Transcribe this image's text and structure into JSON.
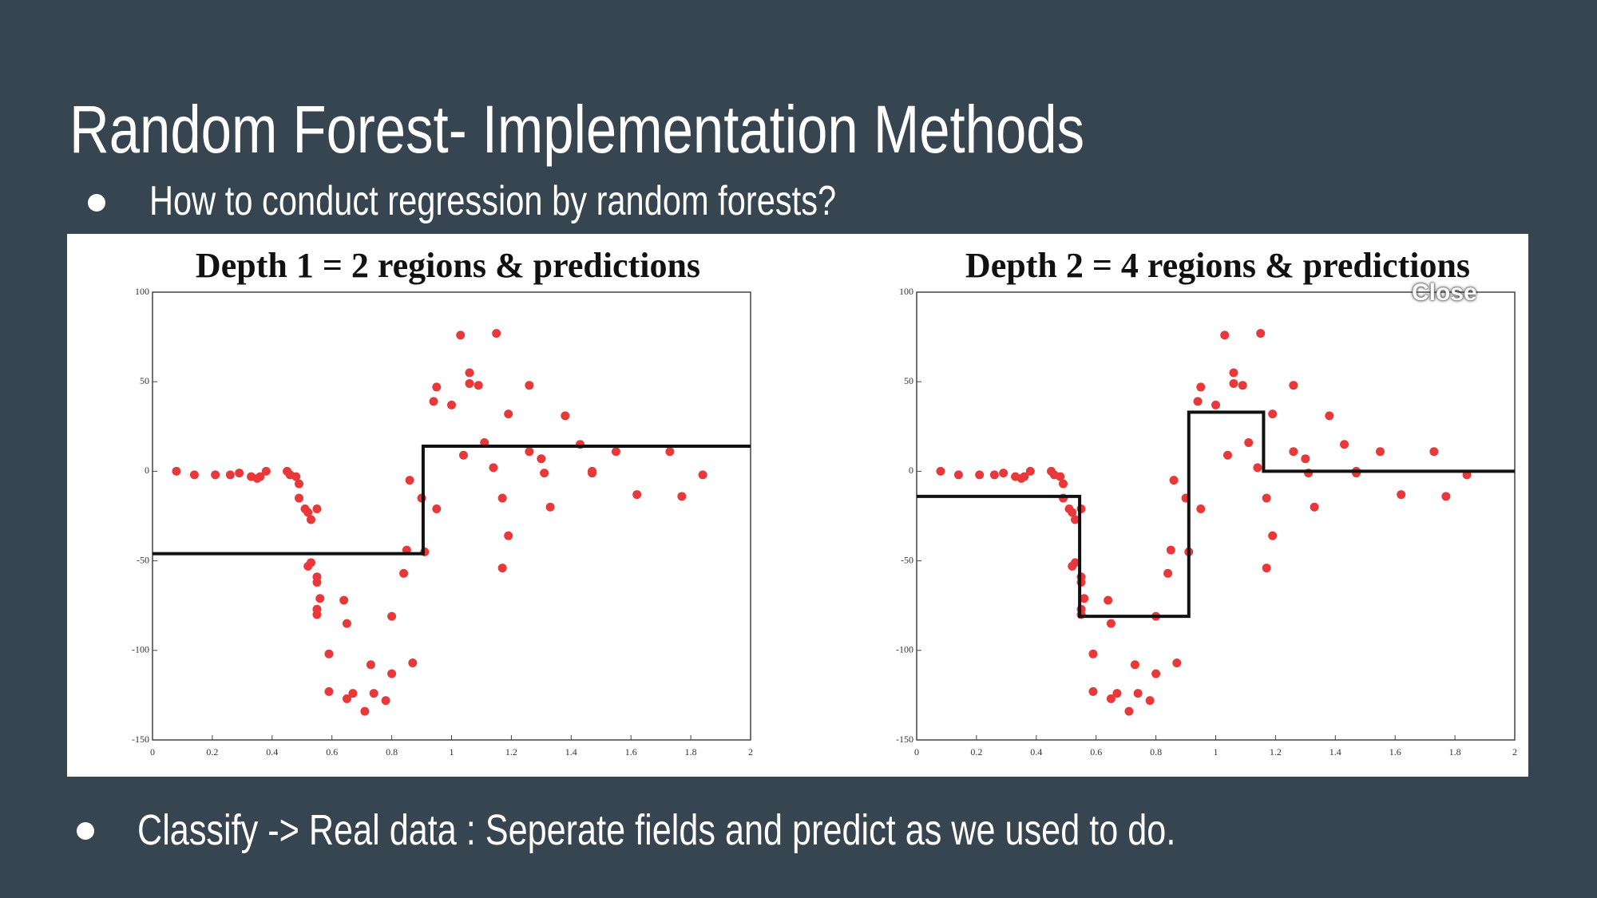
{
  "slide_title": "Random Forest- Implementation Methods",
  "bullets": [
    "How to conduct regression by random forests?",
    "Classify -> Real data : Seperate fields and predict as we used to do."
  ],
  "close_label": "Close",
  "chart_data": [
    {
      "type": "scatter",
      "title": "Depth 1 = 2 regions & predictions",
      "xlim": [
        0,
        2
      ],
      "ylim": [
        -150,
        100
      ],
      "xticks": [
        0,
        0.2,
        0.4,
        0.6,
        0.8,
        1,
        1.2,
        1.4,
        1.6,
        1.8,
        2
      ],
      "yticks": [
        -150,
        -100,
        -50,
        0,
        50,
        100
      ],
      "series": [
        {
          "type": "scatter",
          "color": "#e8393a",
          "x": [
            0.08,
            0.14,
            0.21,
            0.26,
            0.29,
            0.33,
            0.35,
            0.36,
            0.38,
            0.45,
            0.46,
            0.48,
            0.49,
            0.49,
            0.51,
            0.53,
            0.52,
            0.55,
            0.53,
            0.52,
            0.55,
            0.55,
            0.56,
            0.55,
            0.55,
            0.59,
            0.59,
            0.64,
            0.65,
            0.67,
            0.65,
            0.71,
            0.73,
            0.74,
            0.78,
            0.8,
            0.8,
            0.84,
            0.85,
            0.86,
            0.87,
            0.9,
            0.91,
            0.94,
            0.95,
            0.95,
            1.0,
            1.03,
            1.04,
            1.06,
            1.06,
            1.09,
            1.11,
            1.14,
            1.15,
            1.17,
            1.17,
            1.19,
            1.19,
            1.26,
            1.26,
            1.3,
            1.31,
            1.33,
            1.38,
            1.43,
            1.47,
            1.47,
            1.55,
            1.62,
            1.73,
            1.77,
            1.84
          ],
          "values": [
            0,
            -2,
            -2,
            -2,
            -1,
            -3,
            -4,
            -3,
            0,
            0,
            -2,
            -3,
            -7,
            -15,
            -21,
            -27,
            -23,
            -21,
            -51,
            -53,
            -59,
            -62,
            -71,
            -77,
            -80,
            -102,
            -123,
            -72,
            -85,
            -124,
            -127,
            -134,
            -108,
            -124,
            -128,
            -81,
            -113,
            -57,
            -44,
            -5,
            -107,
            -15,
            -45,
            39,
            -21,
            47,
            37,
            76,
            9,
            55,
            49,
            48,
            16,
            2,
            77,
            -15,
            -54,
            32,
            -36,
            48,
            11,
            7,
            -1,
            -20,
            31,
            15,
            0,
            -1,
            11,
            -13,
            11,
            -14,
            -2
          ]
        },
        {
          "type": "line",
          "color": "#111111",
          "x": [
            0,
            0.905,
            0.905,
            2
          ],
          "values": [
            -46,
            -46,
            14,
            14
          ]
        }
      ]
    },
    {
      "type": "scatter",
      "title": "Depth 2 = 4 regions & predictions",
      "xlim": [
        0,
        2
      ],
      "ylim": [
        -150,
        100
      ],
      "xticks": [
        0,
        0.2,
        0.4,
        0.6,
        0.8,
        1,
        1.2,
        1.4,
        1.6,
        1.8,
        2
      ],
      "yticks": [
        -150,
        -100,
        -50,
        0,
        50,
        100
      ],
      "series": [
        {
          "type": "scatter",
          "color": "#e8393a",
          "x": [
            0.08,
            0.14,
            0.21,
            0.26,
            0.29,
            0.33,
            0.35,
            0.36,
            0.38,
            0.45,
            0.46,
            0.48,
            0.49,
            0.49,
            0.51,
            0.53,
            0.52,
            0.55,
            0.53,
            0.52,
            0.55,
            0.55,
            0.56,
            0.55,
            0.55,
            0.59,
            0.59,
            0.64,
            0.65,
            0.67,
            0.65,
            0.71,
            0.73,
            0.74,
            0.78,
            0.8,
            0.8,
            0.84,
            0.85,
            0.86,
            0.87,
            0.9,
            0.91,
            0.94,
            0.95,
            0.95,
            1.0,
            1.03,
            1.04,
            1.06,
            1.06,
            1.09,
            1.11,
            1.14,
            1.15,
            1.17,
            1.17,
            1.19,
            1.19,
            1.26,
            1.26,
            1.3,
            1.31,
            1.33,
            1.38,
            1.43,
            1.47,
            1.47,
            1.55,
            1.62,
            1.73,
            1.77,
            1.84
          ],
          "values": [
            0,
            -2,
            -2,
            -2,
            -1,
            -3,
            -4,
            -3,
            0,
            0,
            -2,
            -3,
            -7,
            -15,
            -21,
            -27,
            -23,
            -21,
            -51,
            -53,
            -59,
            -62,
            -71,
            -77,
            -80,
            -102,
            -123,
            -72,
            -85,
            -124,
            -127,
            -134,
            -108,
            -124,
            -128,
            -81,
            -113,
            -57,
            -44,
            -5,
            -107,
            -15,
            -45,
            39,
            -21,
            47,
            37,
            76,
            9,
            55,
            49,
            48,
            16,
            2,
            77,
            -15,
            -54,
            32,
            -36,
            48,
            11,
            7,
            -1,
            -20,
            31,
            15,
            0,
            -1,
            11,
            -13,
            11,
            -14,
            -2
          ]
        },
        {
          "type": "line",
          "color": "#111111",
          "x": [
            0,
            0.545,
            0.545,
            0.91,
            0.91,
            1.16,
            1.16,
            2
          ],
          "values": [
            -14,
            -14,
            -81,
            -81,
            33,
            33,
            0,
            0
          ]
        }
      ]
    }
  ]
}
